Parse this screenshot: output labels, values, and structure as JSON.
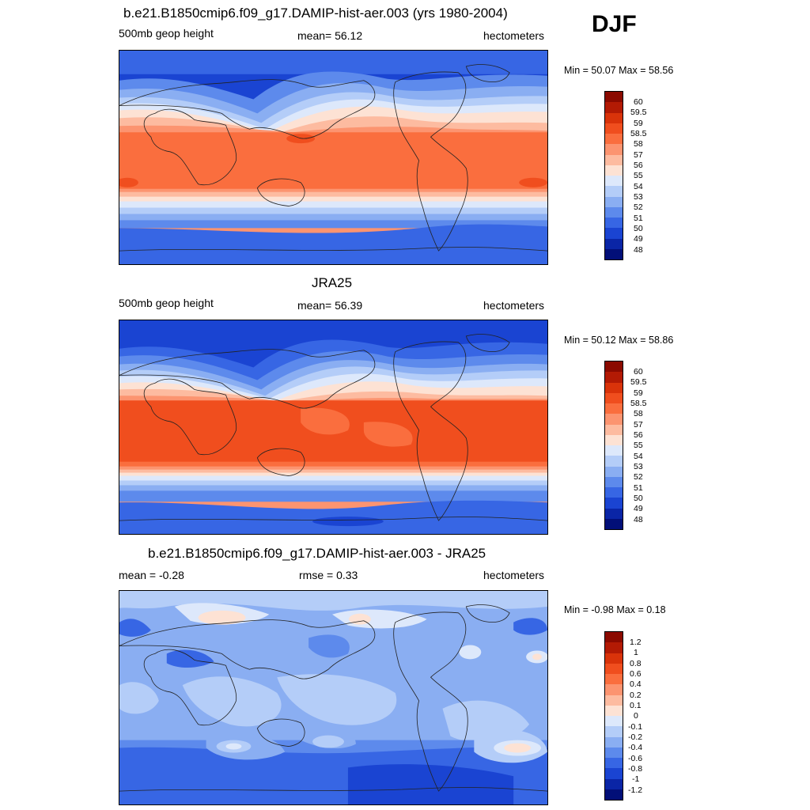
{
  "season": "DJF",
  "panels": [
    {
      "title": "b.e21.B1850cmip6.f09_g17.DAMIP-hist-aer.003 (yrs 1980-2004)",
      "left_label": "500mb geop height",
      "center_label": "mean=  56.12",
      "right_label": "hectometers",
      "minmax": "Min =  50.07 Max =  58.56",
      "colorbar_labels": [
        "60",
        "59.5",
        "59",
        "58.5",
        "58",
        "57",
        "56",
        "55",
        "54",
        "53",
        "52",
        "51",
        "50",
        "49",
        "48"
      ]
    },
    {
      "title": "JRA25",
      "left_label": "500mb geop height",
      "center_label": "mean=  56.39",
      "right_label": "hectometers",
      "minmax": "Min =  50.12 Max =  58.86",
      "colorbar_labels": [
        "60",
        "59.5",
        "59",
        "58.5",
        "58",
        "57",
        "56",
        "55",
        "54",
        "53",
        "52",
        "51",
        "50",
        "49",
        "48"
      ]
    },
    {
      "title": "b.e21.B1850cmip6.f09_g17.DAMIP-hist-aer.003 - JRA25",
      "left_label": "mean =  -0.28",
      "center_label": "rmse =   0.33",
      "right_label": "hectometers",
      "minmax": "Min =  -0.98 Max =   0.18",
      "colorbar_labels": [
        "1.2",
        "1",
        "0.8",
        "0.6",
        "0.4",
        "0.2",
        "0.1",
        "0",
        "-0.1",
        "-0.2",
        "-0.4",
        "-0.6",
        "-0.8",
        "-1",
        "-1.2"
      ]
    }
  ],
  "chart_data": [
    {
      "type": "heatmap",
      "title": "b.e21.B1850cmip6.f09_g17.DAMIP-hist-aer.003 (yrs 1980-2004)",
      "variable": "500mb geop height",
      "units": "hectometers",
      "mean": 56.12,
      "min": 50.07,
      "max": 58.56,
      "contour_levels": [
        48,
        49,
        50,
        51,
        52,
        53,
        54,
        55,
        56,
        57,
        58,
        58.5,
        59,
        59.5,
        60
      ]
    },
    {
      "type": "heatmap",
      "title": "JRA25",
      "variable": "500mb geop height",
      "units": "hectometers",
      "mean": 56.39,
      "min": 50.12,
      "max": 58.86,
      "contour_levels": [
        48,
        49,
        50,
        51,
        52,
        53,
        54,
        55,
        56,
        57,
        58,
        58.5,
        59,
        59.5,
        60
      ]
    },
    {
      "type": "heatmap",
      "title": "b.e21.B1850cmip6.f09_g17.DAMIP-hist-aer.003 - JRA25",
      "units": "hectometers",
      "mean": -0.28,
      "rmse": 0.33,
      "min": -0.98,
      "max": 0.18,
      "contour_levels": [
        -1.2,
        -1,
        -0.8,
        -0.6,
        -0.4,
        -0.2,
        -0.1,
        0,
        0.1,
        0.2,
        0.4,
        0.6,
        0.8,
        1,
        1.2
      ]
    }
  ],
  "colors": {
    "scale": [
      "#8b0a00",
      "#b31a04",
      "#d9330a",
      "#f04e1e",
      "#fa6e3e",
      "#fc9470",
      "#fdbba0",
      "#fde2d4",
      "#dde8fb",
      "#b4cdf8",
      "#8aaef2",
      "#5d8aec",
      "#3766e4",
      "#1a44d2",
      "#0a25a6",
      "#020f78"
    ]
  }
}
